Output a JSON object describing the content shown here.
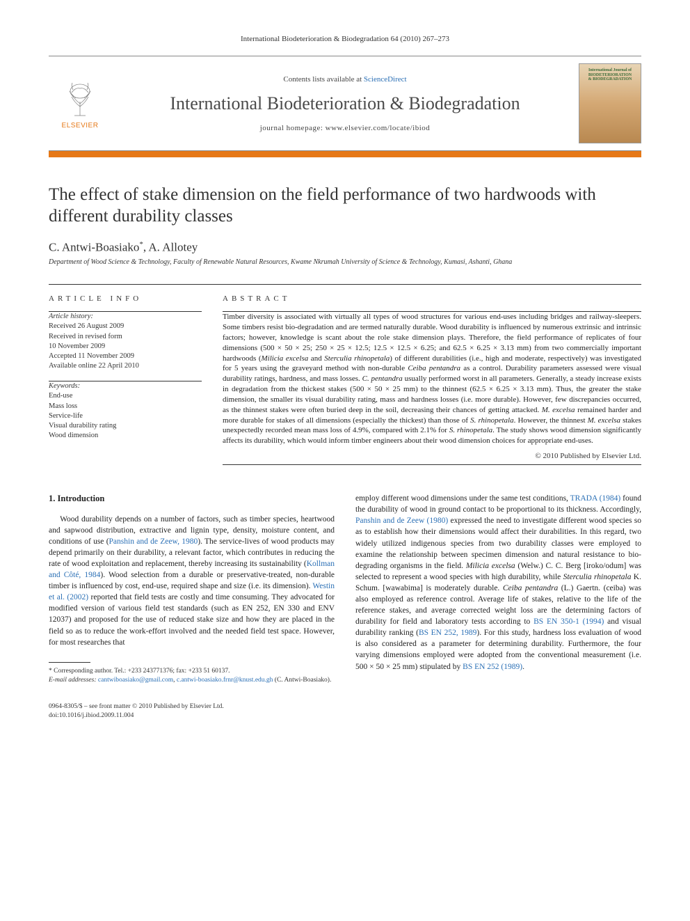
{
  "running_head": "International Biodeterioration & Biodegradation 64 (2010) 267–273",
  "masthead": {
    "elsevier_label": "ELSEVIER",
    "contents_prefix": "Contents lists available at ",
    "contents_link": "ScienceDirect",
    "journal_name": "International Biodeterioration & Biodegradation",
    "homepage_prefix": "journal homepage: ",
    "homepage_url": "www.elsevier.com/locate/ibiod",
    "cover_line1": "International Journal of",
    "cover_line2": "BIODETERIORATION",
    "cover_line3": "& BIODEGRADATION"
  },
  "colors": {
    "orange": "#e67817",
    "link": "#2a6fb5",
    "text": "#1a1a1a",
    "rule": "#333333"
  },
  "article": {
    "title": "The effect of stake dimension on the field performance of two hardwoods with different durability classes",
    "authors_html": "C. Antwi-Boasiako<sup>*</sup>, A. Allotey",
    "affiliation": "Department of Wood Science & Technology, Faculty of Renewable Natural Resources, Kwame Nkrumah University of Science & Technology, Kumasi, Ashanti, Ghana"
  },
  "article_info": {
    "label": "ARTICLE INFO",
    "history_heading": "Article history:",
    "history": [
      "Received 26 August 2009",
      "Received in revised form",
      "10 November 2009",
      "Accepted 11 November 2009",
      "Available online 22 April 2010"
    ],
    "keywords_heading": "Keywords:",
    "keywords": [
      "End-use",
      "Mass loss",
      "Service-life",
      "Visual durability rating",
      "Wood dimension"
    ]
  },
  "abstract": {
    "label": "ABSTRACT",
    "text_html": "Timber diversity is associated with virtually all types of wood structures for various end-uses including bridges and railway-sleepers. Some timbers resist bio-degradation and are termed naturally durable. Wood durability is influenced by numerous extrinsic and intrinsic factors; however, knowledge is scant about the role stake dimension plays. Therefore, the field performance of replicates of four dimensions (500 × 50 × 25; 250 × 25 × 12.5; 12.5 × 12.5 × 6.25; and 62.5 × 6.25 × 3.13 mm) from two commercially important hardwoods (<i>Milicia excelsa</i> and <i>Sterculia rhinopetala</i>) of different durabilities (i.e., high and moderate, respectively) was investigated for 5 years using the graveyard method with non-durable <i>Ceiba pentandra</i> as a control. Durability parameters assessed were visual durability ratings, hardness, and mass losses. <i>C. pentandra</i> usually performed worst in all parameters. Generally, a steady increase exists in degradation from the thickest stakes (500 × 50 × 25 mm) to the thinnest (62.5 × 6.25 × 3.13 mm). Thus, the greater the stake dimension, the smaller its visual durability rating, mass and hardness losses (i.e. more durable). However, few discrepancies occurred, as the thinnest stakes were often buried deep in the soil, decreasing their chances of getting attacked. <i>M. excelsa</i> remained harder and more durable for stakes of all dimensions (especially the thickest) than those of <i>S. rhinopetala</i>. However, the thinnest <i>M. excelsa</i> stakes unexpectedly recorded mean mass loss of 4.9%, compared with 2.1% for <i>S. rhinopetala</i>. The study shows wood dimension significantly affects its durability, which would inform timber engineers about their wood dimension choices for appropriate end-uses.",
    "copyright": "© 2010 Published by Elsevier Ltd."
  },
  "body": {
    "section_heading": "1. Introduction",
    "col1_html": "Wood durability depends on a number of factors, such as timber species, heartwood and sapwood distribution, extractive and lignin type, density, moisture content, and conditions of use (<span class=\"ref\">Panshin and de Zeew, 1980</span>). The service-lives of wood products may depend primarily on their durability, a relevant factor, which contributes in reducing the rate of wood exploitation and replacement, thereby increasing its sustainability (<span class=\"ref\">Kollman and Côté, 1984</span>). Wood selection from a durable or preservative-treated, non-durable timber is influenced by cost, end-use, required shape and size (i.e. its dimension). <span class=\"ref\">Westin et al. (2002)</span> reported that field tests are costly and time consuming. They advocated for modified version of various field test standards (such as EN 252, EN 330 and ENV 12037) and proposed for the use of reduced stake size and how they are placed in the field so as to reduce the work-effort involved and the needed field test space. However, for most researches that",
    "col2_html": "employ different wood dimensions under the same test conditions, <span class=\"ref\">TRADA (1984)</span> found the durability of wood in ground contact to be proportional to its thickness. Accordingly, <span class=\"ref\">Panshin and de Zeew (1980)</span> expressed the need to investigate different wood species so as to establish how their dimensions would affect their durabilities. In this regard, two widely utilized indigenous species from two durability classes were employed to examine the relationship between specimen dimension and natural resistance to bio-degrading organisms in the field. <i>Milicia excelsa</i> (Welw.) C. C. Berg [iroko/odum] was selected to represent a wood species with high durability, while <i>Sterculia rhinopetala</i> K. Schum. [wawabima] is moderately durable. <i>Ceiba pentandra</i> (L.) Gaertn. (ceiba) was also employed as reference control. Average life of stakes, relative to the life of the reference stakes, and average corrected weight loss are the determining factors of durability for field and laboratory tests according to <span class=\"ref\">BS EN 350-1 (1994)</span> and visual durability ranking (<span class=\"ref\">BS EN 252, 1989</span>). For this study, hardness loss evaluation of wood is also considered as a parameter for determining durability. Furthermore, the four varying dimensions employed were adopted from the conventional measurement (i.e. 500 × 50 × 25 mm) stipulated by <span class=\"ref\">BS EN 252 (1989)</span>."
  },
  "footnotes": {
    "corr": "* Corresponding author. Tel.: +233 243771376; fax: +233 51 60137.",
    "email_label": "E-mail addresses:",
    "emails_html": "<a>cantwiboasiako@gmail.com</a>, <a>c.antwi-boasiako.frnr@knust.edu.gh</a> (C. Antwi-Boasiako).",
    "footer_line1": "0964-8305/$ – see front matter © 2010 Published by Elsevier Ltd.",
    "footer_line2": "doi:10.1016/j.ibiod.2009.11.004"
  }
}
